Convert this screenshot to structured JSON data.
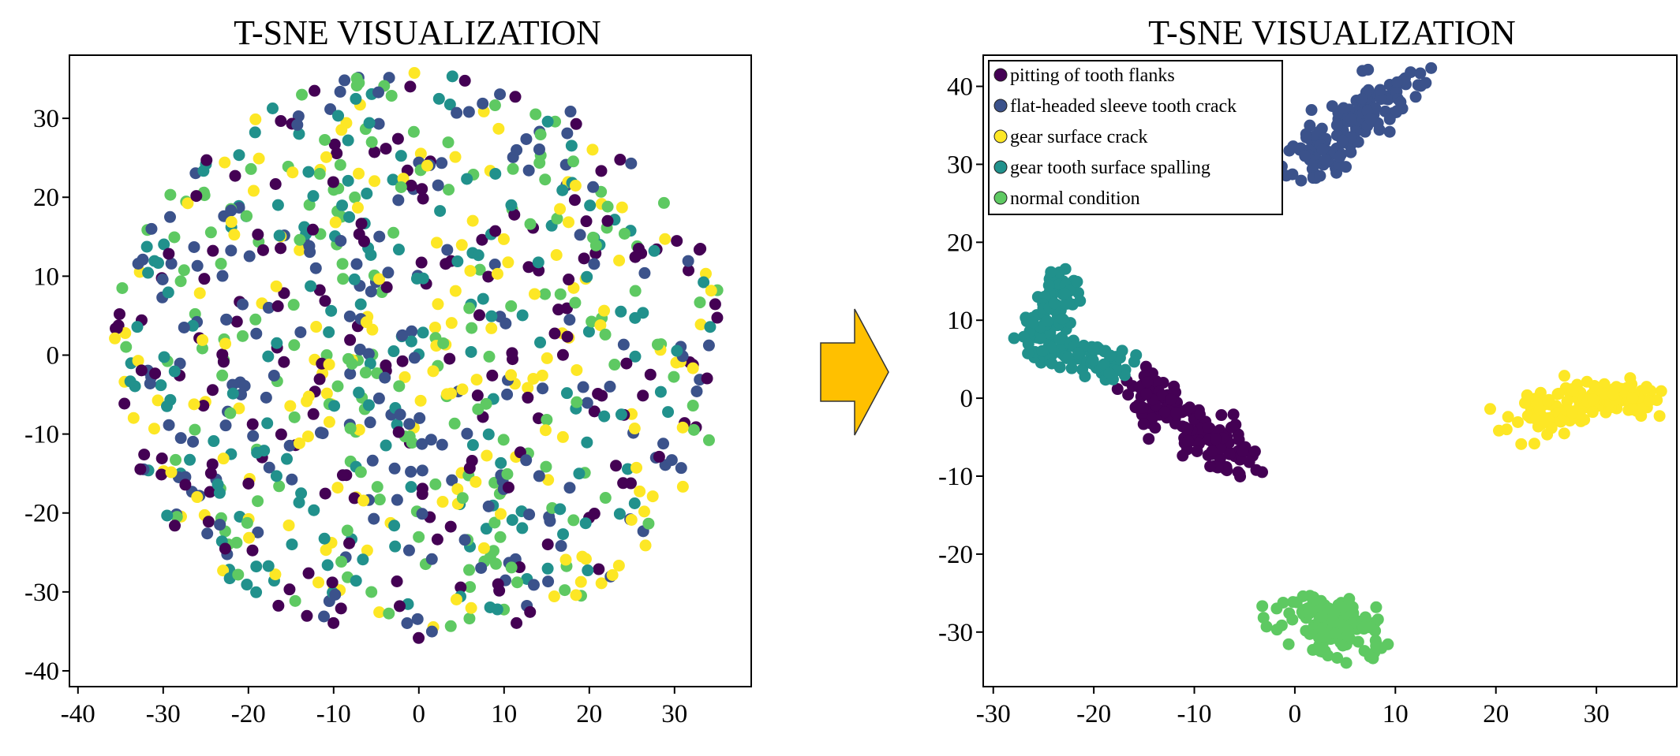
{
  "chart_data": [
    {
      "type": "scatter",
      "title": "T-SNE VISUALIZATION",
      "xlabel": "",
      "ylabel": "",
      "xlim": [
        -41,
        39
      ],
      "ylim": [
        -42,
        38
      ],
      "xticks": [
        -40,
        -30,
        -20,
        -10,
        0,
        10,
        20,
        30
      ],
      "yticks": [
        30,
        20,
        10,
        0,
        -10,
        -20,
        -30,
        -40
      ],
      "xtick_labels": [
        "-40",
        "-30",
        "-20",
        "-10",
        "0",
        "10",
        "20",
        "30"
      ],
      "ytick_labels": [
        "30",
        "20",
        "10",
        "0",
        "-10",
        "-20",
        "-30",
        "-40"
      ],
      "legend": false,
      "distribution": "classes intermixed; points spread roughly uniformly over a disk centred near (0, 0) with radius about 36",
      "series": [
        {
          "name": "pitting of tooth flanks",
          "color": "#440154"
        },
        {
          "name": "flat-headed sleeve tooth crack",
          "color": "#3b528b"
        },
        {
          "name": "gear surface crack",
          "color": "#fde725"
        },
        {
          "name": "gear tooth surface spalling",
          "color": "#21918c"
        },
        {
          "name": "normal condition",
          "color": "#5ec962"
        }
      ]
    },
    {
      "type": "scatter",
      "title": "T-SNE VISUALIZATION",
      "xlabel": "",
      "ylabel": "",
      "xlim": [
        -31,
        38
      ],
      "ylim": [
        -37,
        44
      ],
      "xticks": [
        -30,
        -20,
        -10,
        0,
        10,
        20,
        30
      ],
      "yticks": [
        40,
        30,
        20,
        10,
        0,
        -10,
        -20,
        -30
      ],
      "xtick_labels": [
        "-30",
        "-20",
        "-10",
        "0",
        "10",
        "20",
        "30"
      ],
      "ytick_labels": [
        "40",
        "30",
        "20",
        "10",
        "0",
        "-10",
        "-20",
        "-30"
      ],
      "legend": true,
      "legend_position": "top-left",
      "series": [
        {
          "name": "pitting of tooth flanks",
          "color": "#440154",
          "clusters": [
            {
              "path": [
                [
                  -16,
                  2
                ],
                [
                  -13,
                  -1
                ],
                [
                  -10,
                  -4
                ],
                [
                  -7,
                  -6
                ],
                [
                  -5,
                  -9
                ]
              ],
              "spread": 1.4
            }
          ]
        },
        {
          "name": "flat-headed sleeve tooth crack",
          "color": "#3b528b",
          "clusters": [
            {
              "path": [
                [
                  1,
                  29
                ],
                [
                  3,
                  32
                ],
                [
                  5,
                  35
                ],
                [
                  8,
                  38
                ],
                [
                  11,
                  40
                ]
              ],
              "spread": 1.6
            }
          ]
        },
        {
          "name": "gear surface crack",
          "color": "#fde725",
          "clusters": [
            {
              "path": [
                [
                  22,
                  -3
                ],
                [
                  25,
                  -2
                ],
                [
                  28,
                  0
                ],
                [
                  31,
                  0
                ],
                [
                  35,
                  0
                ]
              ],
              "spread": 1.3
            }
          ]
        },
        {
          "name": "gear tooth surface spalling",
          "color": "#21918c",
          "clusters": [
            {
              "path": [
                [
                  -24,
                  15
                ],
                [
                  -24,
                  11
                ],
                [
                  -25,
                  7
                ],
                [
                  -21,
                  5
                ],
                [
                  -17,
                  4
                ]
              ],
              "spread": 1.3
            }
          ]
        },
        {
          "name": "normal condition",
          "color": "#5ec962",
          "clusters": [
            {
              "path": [
                [
                  1,
                  -27
                ],
                [
                  3,
                  -29
                ],
                [
                  5,
                  -30
                ],
                [
                  7,
                  -31
                ]
              ],
              "spread": 1.7
            }
          ]
        }
      ]
    }
  ],
  "arrow": {
    "color": "#ffc000",
    "stroke": "#333333"
  }
}
